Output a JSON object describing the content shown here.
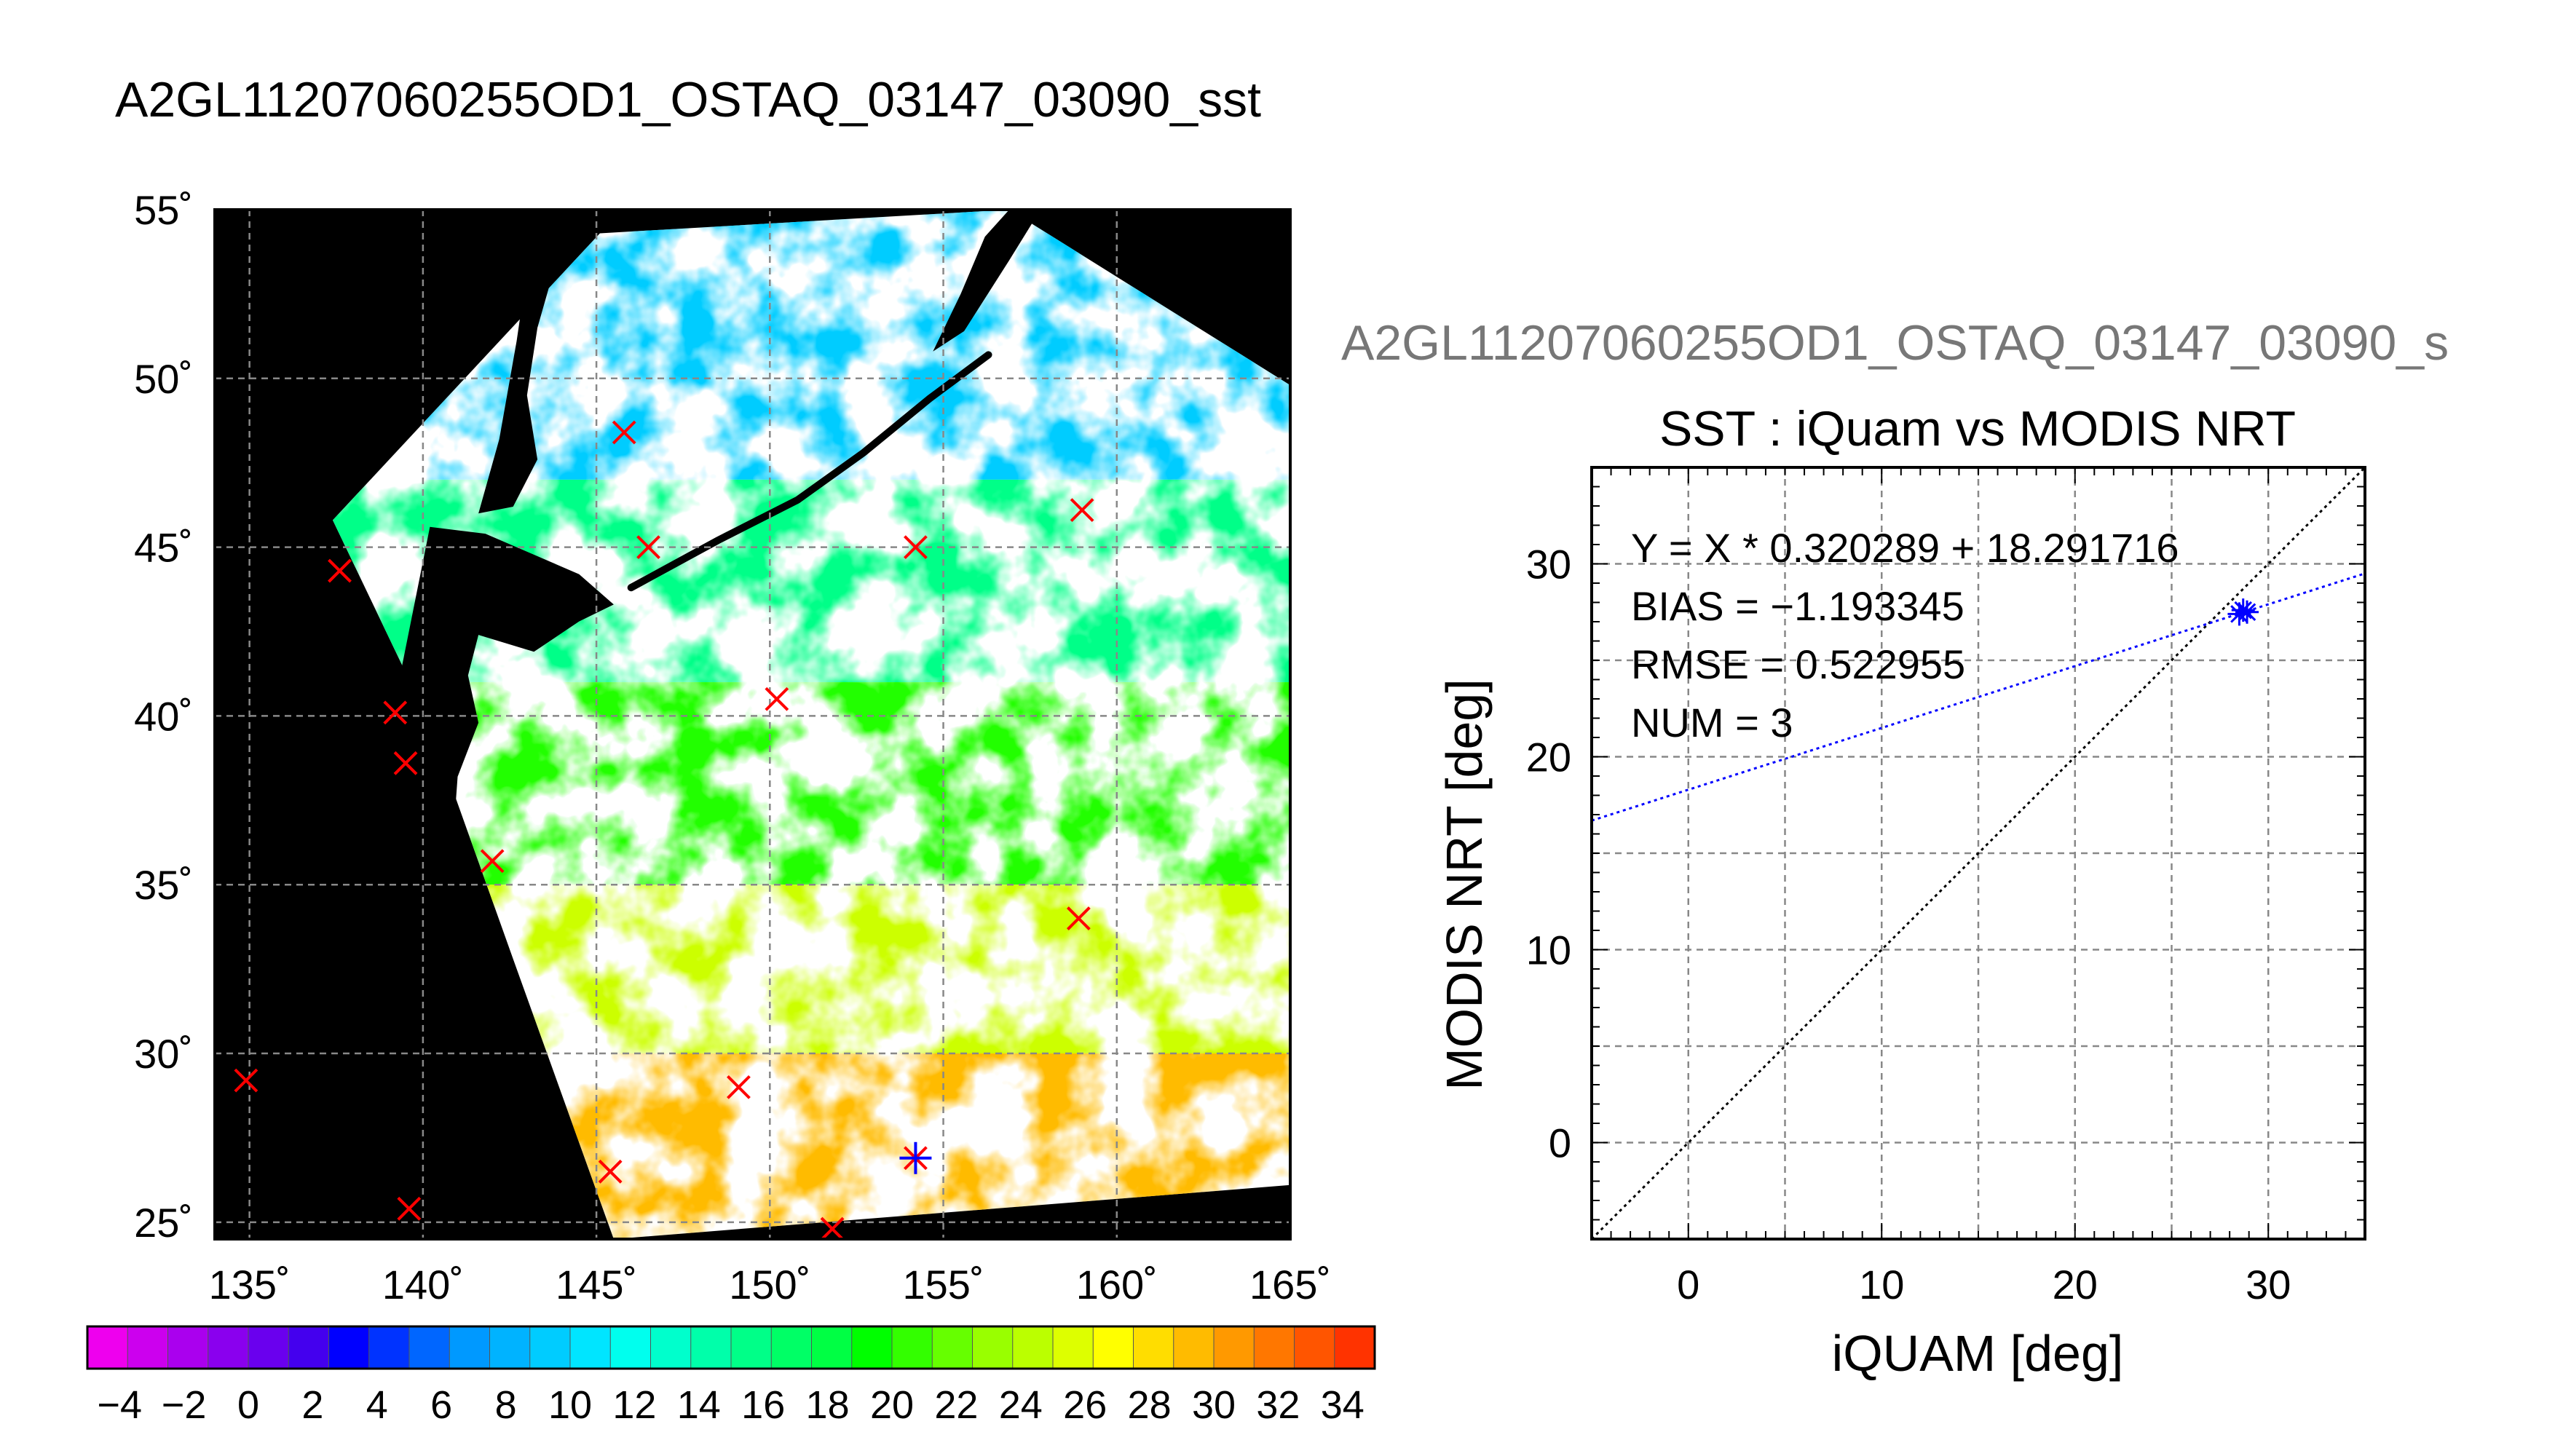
{
  "page": {
    "title": "A2GL11207060255OD1_OSTAQ_03147_03090_sst",
    "right_title": "A2GL11207060255OD1_OSTAQ_03147_03090_s"
  },
  "map": {
    "lat_tick_labels": [
      "25˚",
      "30˚",
      "35˚",
      "40˚",
      "45˚",
      "50˚",
      "55˚"
    ],
    "lon_tick_labels": [
      "135˚",
      "140˚",
      "145˚",
      "150˚",
      "155˚",
      "160˚",
      "165˚"
    ],
    "colorbar_tick_labels": [
      "−4",
      "−2",
      "0",
      "2",
      "4",
      "6",
      "8",
      "10",
      "12",
      "14",
      "16",
      "18",
      "20",
      "22",
      "24",
      "26",
      "28",
      "30",
      "32",
      "34"
    ]
  },
  "scatter": {
    "title": "SST : iQuam vs MODIS NRT",
    "xlabel": "iQUAM [deg]",
    "ylabel": "MODIS NRT [deg]",
    "x_tick_labels": [
      "0",
      "10",
      "20",
      "30"
    ],
    "y_tick_labels": [
      "0",
      "10",
      "20",
      "30"
    ],
    "stats": {
      "fit": "Y = X * 0.320289 + 18.291716",
      "bias": "BIAS = −1.193345",
      "rmse": "RMSE = 0.522955",
      "num": "NUM = 3"
    }
  },
  "chart_data": [
    {
      "type": "heatmap",
      "title": "A2GL11207060255OD1_OSTAQ_03147_03090_sst",
      "xlim": [
        134,
        165
      ],
      "ylim": [
        24.5,
        55
      ],
      "x_ticks": [
        135,
        140,
        145,
        150,
        155,
        160,
        165
      ],
      "y_ticks": [
        25,
        30,
        35,
        40,
        45,
        50,
        55
      ],
      "grid": true,
      "colorbar": {
        "range": [
          -5,
          35
        ],
        "ticks": [
          -4,
          -2,
          0,
          2,
          4,
          6,
          8,
          10,
          12,
          14,
          16,
          18,
          20,
          22,
          24,
          26,
          28,
          30,
          32,
          34
        ],
        "colors": [
          "#ee00ee",
          "#cc00ee",
          "#aa00ee",
          "#8a00ee",
          "#6a00ee",
          "#4400ee",
          "#0000ff",
          "#0033ff",
          "#0066ff",
          "#0099ff",
          "#00b3ff",
          "#00ccff",
          "#00e5ff",
          "#00ffee",
          "#00ffcc",
          "#00ffaa",
          "#00ff88",
          "#00ff66",
          "#00ff44",
          "#00ff00",
          "#33ff00",
          "#66ff00",
          "#99ff00",
          "#bbff00",
          "#ddff00",
          "#ffff00",
          "#ffdd00",
          "#ffbb00",
          "#ff9900",
          "#ff7700",
          "#ff5500",
          "#ff3300"
        ]
      },
      "matchup_markers": [
        {
          "lon": 145.8,
          "lat": 48.4
        },
        {
          "lon": 146.5,
          "lat": 45.0
        },
        {
          "lon": 154.2,
          "lat": 45.0
        },
        {
          "lon": 159.0,
          "lat": 46.1
        },
        {
          "lon": 137.6,
          "lat": 44.3
        },
        {
          "lon": 150.2,
          "lat": 40.5
        },
        {
          "lon": 139.2,
          "lat": 40.1
        },
        {
          "lon": 139.5,
          "lat": 38.6
        },
        {
          "lon": 142.0,
          "lat": 35.7
        },
        {
          "lon": 158.9,
          "lat": 34.0
        },
        {
          "lon": 134.9,
          "lat": 29.2
        },
        {
          "lon": 149.1,
          "lat": 29.0
        },
        {
          "lon": 145.4,
          "lat": 26.5
        },
        {
          "lon": 139.6,
          "lat": 25.4
        },
        {
          "lon": 151.8,
          "lat": 24.8
        },
        {
          "lon": 154.2,
          "lat": 26.9
        }
      ]
    },
    {
      "type": "scatter",
      "title": "SST : iQuam vs MODIS NRT",
      "xlabel": "iQUAM [deg]",
      "ylabel": "MODIS NRT [deg]",
      "xlim": [
        -5,
        35
      ],
      "ylim": [
        -5,
        35
      ],
      "x_ticks": [
        0,
        10,
        20,
        30
      ],
      "y_ticks": [
        0,
        10,
        20,
        30
      ],
      "grid": true,
      "points": [
        {
          "x": 28.5,
          "y": 27.4
        },
        {
          "x": 28.7,
          "y": 27.6
        },
        {
          "x": 28.9,
          "y": 27.5
        }
      ],
      "lines": [
        {
          "kind": "identity",
          "slope": 1,
          "intercept": 0,
          "color": "#000000"
        },
        {
          "kind": "fit",
          "slope": 0.320289,
          "intercept": 18.291716,
          "color": "#0000ff"
        }
      ]
    }
  ]
}
